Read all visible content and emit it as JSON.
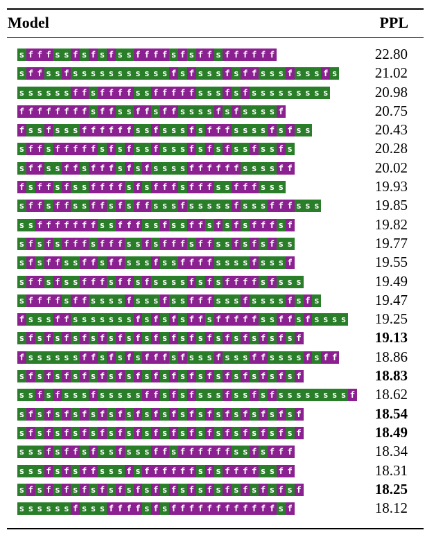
{
  "table": {
    "header": {
      "model": "Model",
      "ppl": "PPL"
    },
    "colors": {
      "s": "#2a7e2a",
      "f": "#8b2090"
    },
    "rows": [
      {
        "model": "sfffssfsfsfssffffsfsffsffffff",
        "ppl": "22.80",
        "bold": false
      },
      {
        "model": "sffssfsssssssssssfsfsssfsffsssfsssfs",
        "ppl": "21.02",
        "bold": false
      },
      {
        "model": "ssssssffsffffssfffffsssfsfsssssssss",
        "ppl": "20.98",
        "bold": false
      },
      {
        "model": "ffffffffsffssffsffssssfsfssssf",
        "ppl": "20.75",
        "bold": false
      },
      {
        "model": "fssfsssffffffssfsssfsfffssssfsfss",
        "ppl": "20.43",
        "bold": false
      },
      {
        "model": "sffsfffffsfsfssfsssfsfsfssfssfs",
        "ppl": "20.28",
        "bold": false
      },
      {
        "model": "sffssffsfffsfsfssssffffffssssff",
        "ppl": "20.02",
        "bold": false
      },
      {
        "model": "fsffsfssffffsfsfffsfffssfffsss",
        "ppl": "19.93",
        "bold": false
      },
      {
        "model": "sffsffssffsfsffsssfsssssfsssfffsss",
        "ppl": "19.85",
        "bold": false
      },
      {
        "model": "ssfffffffssfffssfssffsfsfsfffsf",
        "ppl": "19.82",
        "bold": false
      },
      {
        "model": "sfsfsfffsfffssfsfffsffssfsfsfss",
        "ppl": "19.77",
        "bold": false
      },
      {
        "model": "sfsffssffsffsssfssffffssssfsssf",
        "ppl": "19.55",
        "bold": false
      },
      {
        "model": "sffsfssfffsffsfssssfsfsffffsfsss",
        "ppl": "19.49",
        "bold": false
      },
      {
        "model": "sffffsffssssfsssfssfffsssfssssfsfs",
        "ppl": "19.47",
        "bold": false
      },
      {
        "model": "fsssffsssssssfsfsfsffsfffffssffsfssss",
        "ppl": "19.25",
        "bold": false
      },
      {
        "model": "sfsfsfsfsfsfsfsfsfsfsfsfsfsfsfsf",
        "ppl": "19.13",
        "bold": true
      },
      {
        "model": "fssssssffsfsfsfffsfsssfsssffssssfsff",
        "ppl": "18.86",
        "bold": false
      },
      {
        "model": "sfsfsfsfsfsfsfsfsfsfsfsfsfsfsfsf",
        "ppl": "18.83",
        "bold": true
      },
      {
        "model": "ssfsfsssfsssssffsfsfsssfssfsfssssssssf",
        "ppl": "18.62",
        "bold": false
      },
      {
        "model": "sfsfsfsfsfsfsfsfsfsfsfsfsfsfsfsf",
        "ppl": "18.54",
        "bold": true
      },
      {
        "model": "sfsfsfsfsfsfsfsfsfsfsfsfsfsfsfsf",
        "ppl": "18.49",
        "bold": true
      },
      {
        "model": "sssfsffsfssfsssffsffffffssfsfff",
        "ppl": "18.34",
        "bold": false
      },
      {
        "model": "sssfsfsffsssfsffffffsfsffffssff",
        "ppl": "18.31",
        "bold": false
      },
      {
        "model": "sfsfsfsfsfsfsfsfsfsfsfsfsfsfsfsf",
        "ppl": "18.25",
        "bold": true
      },
      {
        "model": "ssssssfsssffffsfsffffffffffffsf",
        "ppl": "18.12",
        "bold": false
      }
    ]
  }
}
